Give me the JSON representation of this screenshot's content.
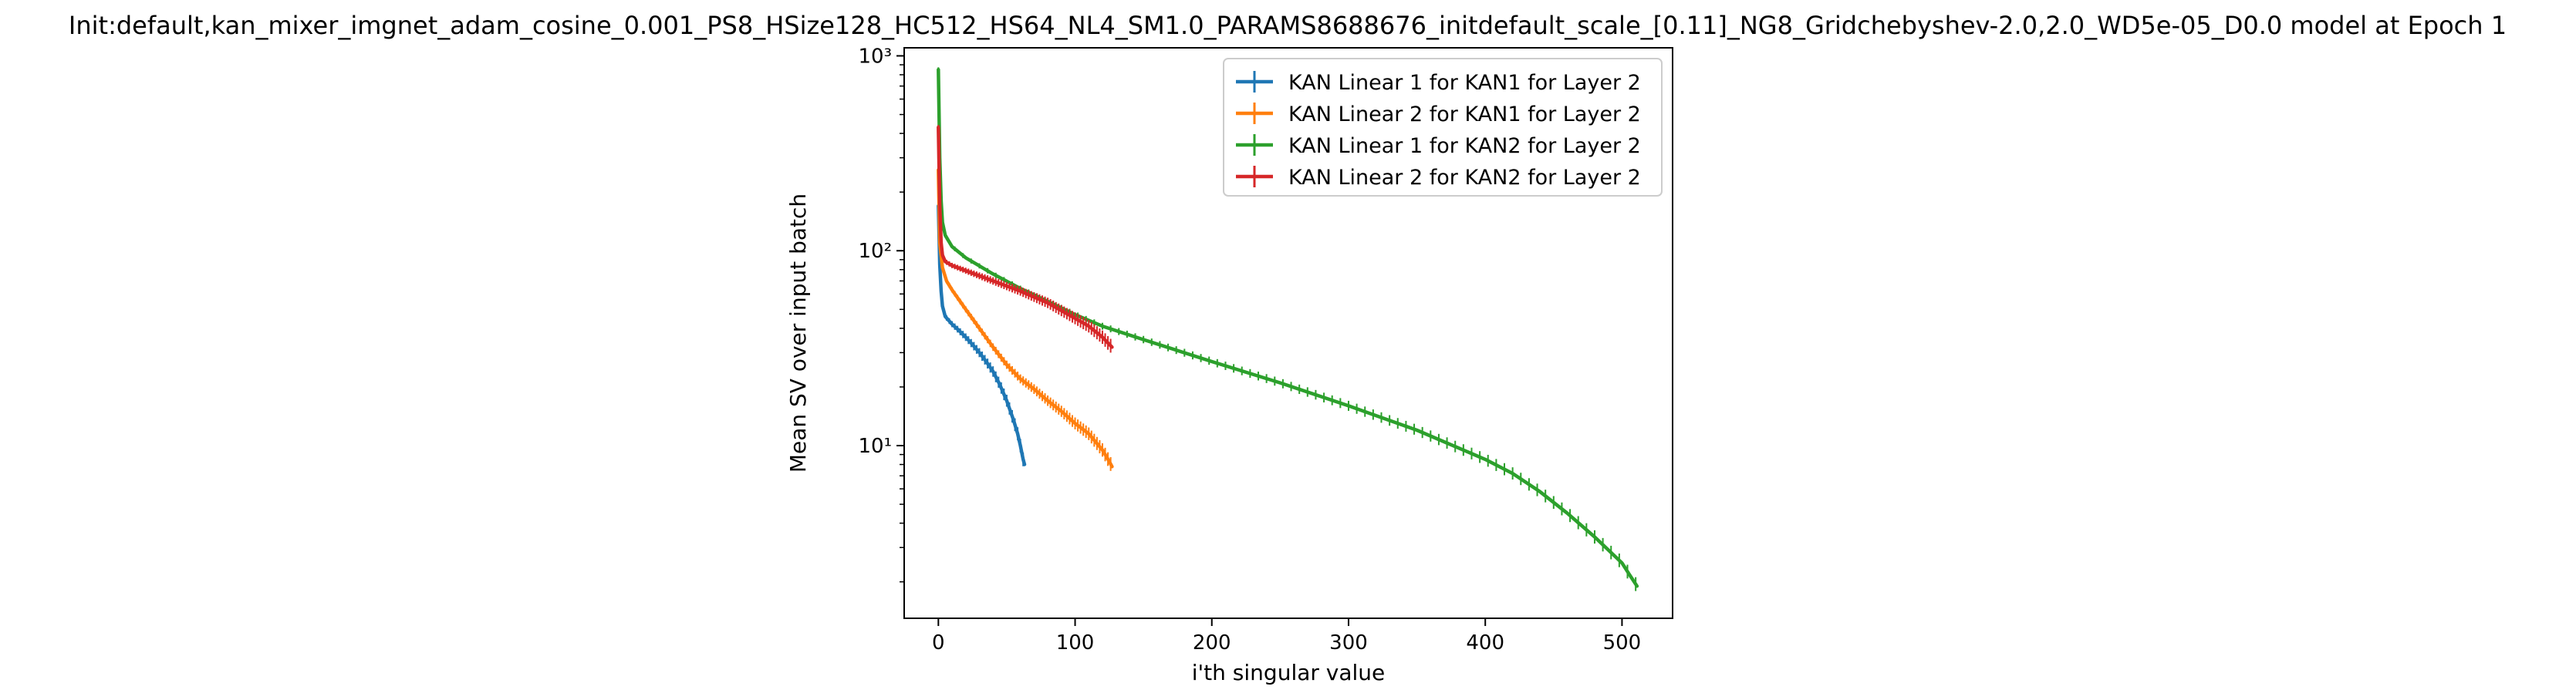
{
  "chart_data": {
    "type": "line",
    "title": "Init:default,kan_mixer_imgnet_adam_cosine_0.001_PS8_HSize128_HC512_HS64_NL4_SM1.0_PARAMS8688676_initdefault_scale_[0.11]_NG8_Gridchebyshev-2.0,2.0_WD5e-05_D0.0 model at Epoch 1",
    "xlabel": "i'th singular value",
    "ylabel": "Mean SV over input batch",
    "xlim": [
      -25,
      537
    ],
    "ylim": [
      1.3,
      1100
    ],
    "yscale": "log",
    "x_ticks": [
      0,
      100,
      200,
      300,
      400,
      500
    ],
    "x_tick_labels": [
      "0",
      "100",
      "200",
      "300",
      "400",
      "500"
    ],
    "y_ticks": [
      10,
      100,
      1000
    ],
    "y_tick_labels": [
      "10¹",
      "10²",
      "10³"
    ],
    "grid": false,
    "legend": "top-right",
    "error_bars": true,
    "series": [
      {
        "name": "KAN Linear 1 for KAN1 for Layer 2",
        "color": "#1f77b4",
        "points": [
          [
            0,
            170
          ],
          [
            1,
            85
          ],
          [
            2,
            62
          ],
          [
            3,
            52
          ],
          [
            5,
            46
          ],
          [
            10,
            42
          ],
          [
            15,
            39
          ],
          [
            20,
            36
          ],
          [
            25,
            33
          ],
          [
            30,
            30
          ],
          [
            35,
            27
          ],
          [
            40,
            24
          ],
          [
            45,
            20.5
          ],
          [
            50,
            17
          ],
          [
            55,
            13.5
          ],
          [
            58,
            11.5
          ],
          [
            60,
            10
          ],
          [
            62,
            8.5
          ],
          [
            63,
            8
          ]
        ]
      },
      {
        "name": "KAN Linear 2 for KAN1 for Layer 2",
        "color": "#ff7f0e",
        "points": [
          [
            0,
            260
          ],
          [
            1,
            110
          ],
          [
            3,
            82
          ],
          [
            6,
            70
          ],
          [
            10,
            63
          ],
          [
            20,
            50
          ],
          [
            30,
            40
          ],
          [
            40,
            32
          ],
          [
            50,
            26
          ],
          [
            60,
            22
          ],
          [
            70,
            19.5
          ],
          [
            80,
            17
          ],
          [
            90,
            15
          ],
          [
            100,
            13
          ],
          [
            110,
            11.5
          ],
          [
            120,
            9.5
          ],
          [
            125,
            8.3
          ],
          [
            127,
            7.8
          ]
        ]
      },
      {
        "name": "KAN Linear 1 for KAN2 for Layer 2",
        "color": "#2ca02c",
        "points": [
          [
            0,
            850
          ],
          [
            1,
            300
          ],
          [
            2,
            180
          ],
          [
            3,
            140
          ],
          [
            5,
            120
          ],
          [
            10,
            105
          ],
          [
            20,
            92
          ],
          [
            40,
            76
          ],
          [
            60,
            64
          ],
          [
            80,
            55
          ],
          [
            100,
            47
          ],
          [
            120,
            41
          ],
          [
            150,
            35
          ],
          [
            200,
            27
          ],
          [
            250,
            21
          ],
          [
            300,
            16
          ],
          [
            350,
            12
          ],
          [
            400,
            8.5
          ],
          [
            420,
            7.2
          ],
          [
            440,
            5.8
          ],
          [
            460,
            4.5
          ],
          [
            480,
            3.4
          ],
          [
            500,
            2.5
          ],
          [
            505,
            2.2
          ],
          [
            511,
            1.9
          ]
        ]
      },
      {
        "name": "KAN Linear 2 for KAN2 for Layer 2",
        "color": "#d62728",
        "points": [
          [
            0,
            430
          ],
          [
            1,
            170
          ],
          [
            2,
            110
          ],
          [
            3,
            95
          ],
          [
            5,
            88
          ],
          [
            10,
            84
          ],
          [
            20,
            79
          ],
          [
            40,
            70
          ],
          [
            60,
            62
          ],
          [
            80,
            54
          ],
          [
            100,
            45
          ],
          [
            110,
            41
          ],
          [
            120,
            36
          ],
          [
            127,
            32
          ]
        ]
      }
    ]
  }
}
